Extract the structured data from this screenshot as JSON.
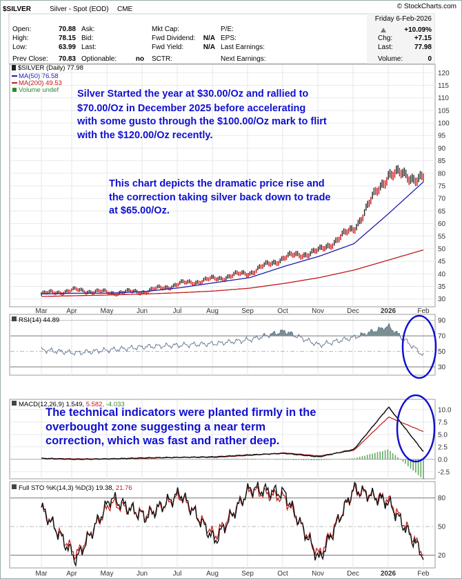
{
  "header": {
    "symbol": "$SILVER",
    "description": "Silver - Spot (EOD)",
    "exchange": "CME",
    "watermark": "© StockCharts.com",
    "date": "Friday   6-Feb-2026",
    "change_pct": "+10.09%",
    "quote": {
      "open_label": "Open:",
      "open": "70.88",
      "high_label": "High:",
      "high": "78.15",
      "low_label": "Low:",
      "low": "63.99",
      "prev_label": "Prev Close:",
      "prev": "70.83",
      "ask_label": "Ask:",
      "bid_label": "Bid:",
      "last_label": "Last:",
      "optionable_label": "Optionable:",
      "optionable": "no",
      "mktcap_label": "Mkt Cap:",
      "fwddiv_label": "Fwd Dividend:",
      "fwddiv": "N/A",
      "fwdyield_label": "Fwd Yield:",
      "fwdyield": "N/A",
      "sctr_label": "SCTR:",
      "pe_label": "P/E:",
      "eps_label": "EPS:",
      "lastearn_label": "Last Earnings:",
      "nextearn_label": "Next Earnings:",
      "chg_label": "Chg:",
      "chg": "+7.15",
      "last2_label": "Last:",
      "last2": "77.98",
      "volume_label": "Volume:",
      "volume": "0"
    }
  },
  "price_panel": {
    "legend": [
      "$SILVER (Daily) 77.98",
      "MA(50) 76.58",
      "MA(200) 49.53",
      "Volume undef"
    ],
    "y_ticks": [
      "120",
      "115",
      "110",
      "105",
      "100",
      "95",
      "90",
      "85",
      "80",
      "75",
      "70",
      "65",
      "60",
      "55",
      "50",
      "45",
      "40",
      "35",
      "30"
    ],
    "annotation1": [
      "Silver Started the year at $30.00/Oz and rallied to",
      "$70.00/Oz in December 2025 before accelerating",
      "with some gusto through the $100.00/Oz mark to flirt",
      "with the $120.00/Oz recently."
    ],
    "annotation2": [
      "This chart depicts the dramatic price rise and",
      "the correction taking silver back down to trade",
      "at $65.00/Oz."
    ]
  },
  "rsi_panel": {
    "legend": "RSI(14) 44.89",
    "y_ticks": [
      "90",
      "70",
      "50",
      "30"
    ]
  },
  "macd_panel": {
    "legend_prefix": "MACD(12,26,9) 1.549,",
    "legend_signal": "5.582,",
    "legend_hist": "-4.033",
    "y_ticks": [
      "10.0",
      "7.5",
      "5.0",
      "2.5",
      "0.0",
      "-2.5"
    ],
    "annotation": [
      "The technical indicators were planted firmly in the",
      "overbought zone suggesting a near term",
      "correction, which was fast and rather deep."
    ]
  },
  "sto_panel": {
    "legend_prefix": "Full STO %K(14,3) %D(3) 19.38,",
    "legend_d": "21.76",
    "y_ticks": [
      "80",
      "50",
      "20"
    ]
  },
  "x_axis": {
    "labels": [
      "Mar",
      "Apr",
      "May",
      "Jun",
      "Jul",
      "Aug",
      "Sep",
      "Oct",
      "Nov",
      "Dec",
      "2026",
      "Feb"
    ]
  },
  "chart_data": [
    {
      "type": "line",
      "title": "$SILVER (Daily) Silver - Spot (EOD)",
      "x": [
        "Mar",
        "Apr",
        "May",
        "Jun",
        "Jul",
        "Aug",
        "Sep",
        "Oct",
        "Nov",
        "Dec",
        "2026",
        "Feb"
      ],
      "series": [
        {
          "name": "$SILVER (Daily)",
          "values": [
            32.0,
            33.5,
            32.5,
            33.0,
            36.0,
            38.0,
            40.5,
            46.5,
            49.0,
            58.0,
            80.0,
            77.98
          ]
        },
        {
          "name": "MA(50)",
          "values": [
            32.0,
            32.3,
            32.3,
            33.0,
            34.5,
            36.5,
            38.5,
            43.0,
            47.0,
            52.0,
            64.0,
            76.58
          ]
        },
        {
          "name": "MA(200)",
          "values": [
            31.0,
            31.3,
            31.6,
            32.0,
            32.5,
            33.2,
            34.3,
            36.2,
            38.5,
            41.5,
            45.5,
            49.53
          ]
        }
      ],
      "key_points": {
        "start_2025": 30.0,
        "dec_2025": 70.0,
        "peak_2026": 120.0,
        "current": 77.98,
        "low_today": 63.99
      },
      "ylim": [
        28,
        122
      ]
    },
    {
      "type": "line",
      "title": "RSI(14)",
      "series": [
        {
          "name": "RSI(14)",
          "values": [
            52,
            48,
            52,
            56,
            58,
            60,
            65,
            76,
            58,
            68,
            82,
            44.89
          ]
        }
      ],
      "ylim": [
        22,
        95
      ]
    },
    {
      "type": "line",
      "title": "MACD(12,26,9)",
      "series": [
        {
          "name": "MACD",
          "values": [
            0.2,
            0.0,
            0.1,
            0.3,
            0.4,
            0.5,
            0.9,
            1.2,
            0.5,
            2.0,
            10.5,
            1.549
          ]
        },
        {
          "name": "Signal",
          "values": [
            0.2,
            0.1,
            0.1,
            0.2,
            0.4,
            0.4,
            0.8,
            1.3,
            0.7,
            1.8,
            8.5,
            5.582
          ]
        },
        {
          "name": "Histogram",
          "values": [
            0.0,
            -0.1,
            0.0,
            0.1,
            0.0,
            0.1,
            0.1,
            -0.1,
            -0.2,
            0.2,
            2.0,
            -4.033
          ]
        }
      ],
      "ylim": [
        -3.5,
        11.5
      ]
    },
    {
      "type": "line",
      "title": "Full STO %K(14,3) %D(3)",
      "series": [
        {
          "name": "%K",
          "values": [
            70,
            15,
            80,
            60,
            85,
            35,
            90,
            85,
            15,
            90,
            75,
            19.38
          ]
        },
        {
          "name": "%D",
          "values": [
            68,
            20,
            75,
            62,
            82,
            40,
            88,
            80,
            20,
            88,
            78,
            21.76
          ]
        }
      ],
      "ylim": [
        8,
        95
      ]
    }
  ]
}
